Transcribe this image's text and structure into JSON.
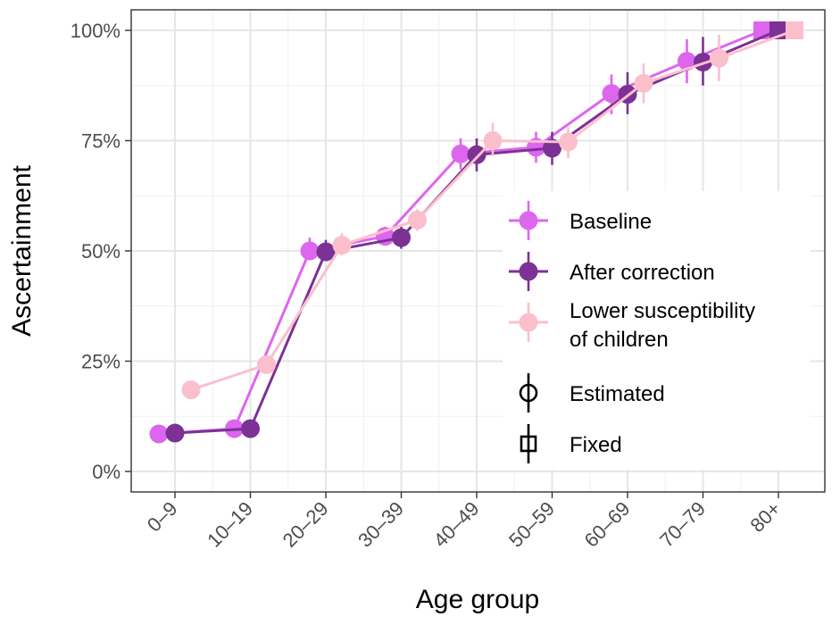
{
  "chart_data": {
    "type": "line",
    "xlabel": "Age group",
    "ylabel": "Ascertainment",
    "categories": [
      "0–9",
      "10–19",
      "20–29",
      "30–39",
      "40–49",
      "50–59",
      "60–69",
      "70–79",
      "80+"
    ],
    "y_ticks": [
      {
        "value": 0,
        "label": "0%"
      },
      {
        "value": 25,
        "label": "25%"
      },
      {
        "value": 50,
        "label": "50%"
      },
      {
        "value": 75,
        "label": "75%"
      },
      {
        "value": 100,
        "label": "100%"
      }
    ],
    "ylim": [
      -4,
      105
    ],
    "grid": true,
    "legend_position": "right",
    "series": [
      {
        "name": "Baseline",
        "color": "#dd66ee",
        "values": [
          8.5,
          9.7,
          50.0,
          53.3,
          72.0,
          73.5,
          85.7,
          93.0,
          100
        ],
        "err_low": [
          8.5,
          9.7,
          48.5,
          51.5,
          68.5,
          70.0,
          81.0,
          88.0,
          100
        ],
        "err_high": [
          8.5,
          9.7,
          53.0,
          55.5,
          75.5,
          77.0,
          90.0,
          98.0,
          100
        ],
        "markers": [
          "circle",
          "circle",
          "circle",
          "circle",
          "circle",
          "circle",
          "circle",
          "circle",
          "square"
        ]
      },
      {
        "name": "After correction",
        "color": "#7b3294",
        "values": [
          8.7,
          9.7,
          49.8,
          53.0,
          71.8,
          73.3,
          85.5,
          92.8,
          100
        ],
        "err_low": [
          8.7,
          9.7,
          48.0,
          50.5,
          68.0,
          69.5,
          81.0,
          87.5,
          100
        ],
        "err_high": [
          8.7,
          9.7,
          52.5,
          55.5,
          75.5,
          77.0,
          90.5,
          98.5,
          100
        ],
        "markers": [
          "circle",
          "circle",
          "circle",
          "circle",
          "circle",
          "circle",
          "circle",
          "circle",
          "square"
        ]
      },
      {
        "name": "Lower susceptibility of children",
        "name_lines": [
          "Lower susceptibility",
          "of children"
        ],
        "color": "#fbbfcb",
        "values": [
          18.5,
          24.2,
          51.3,
          57.0,
          75.0,
          74.7,
          88.0,
          93.7,
          100
        ],
        "err_low": [
          18.5,
          24.2,
          49.0,
          54.5,
          71.5,
          71.0,
          83.5,
          88.5,
          100
        ],
        "err_high": [
          18.5,
          24.2,
          54.0,
          59.5,
          79.0,
          78.0,
          92.5,
          99.0,
          100
        ],
        "markers": [
          "circle",
          "circle",
          "circle",
          "circle",
          "circle",
          "circle",
          "circle",
          "circle",
          "square"
        ]
      }
    ],
    "shape_legend": [
      {
        "label": "Estimated",
        "shape": "circle"
      },
      {
        "label": "Fixed",
        "shape": "square"
      }
    ]
  }
}
